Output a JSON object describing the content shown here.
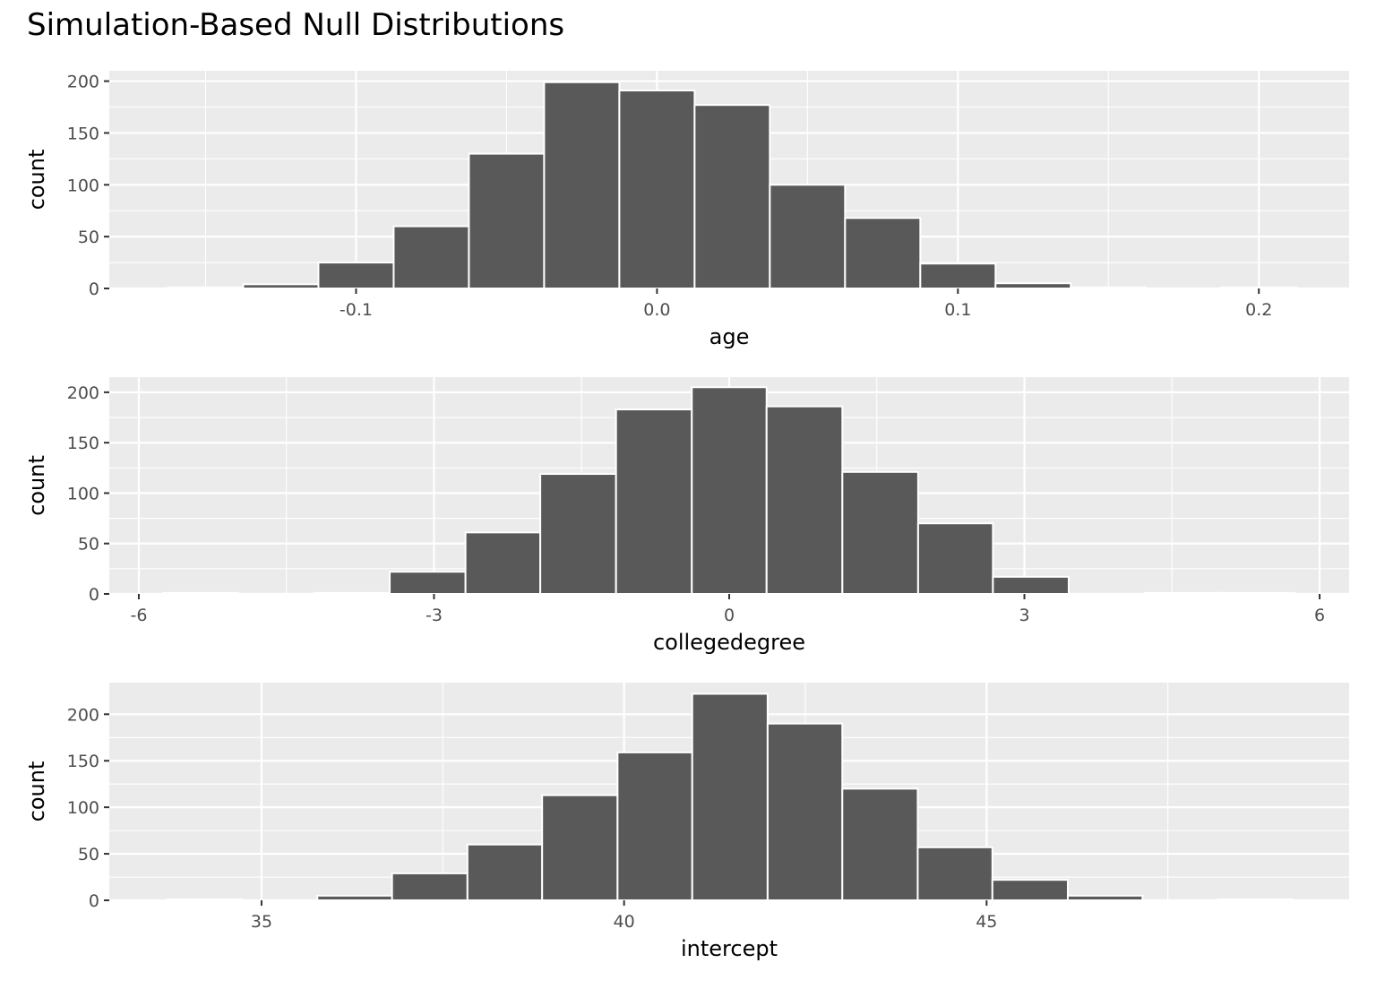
{
  "title": "Simulation-Based Null Distributions",
  "chart_data": [
    {
      "type": "bar",
      "panel": "age",
      "title": "",
      "xlabel": "age",
      "ylabel": "count",
      "xlim": [
        -0.182,
        0.23
      ],
      "ylim": [
        0,
        210
      ],
      "x_ticks": [
        -0.1,
        0.0,
        0.1,
        0.2
      ],
      "x_tick_labels": [
        "-0.1",
        "0.0",
        "0.1",
        "0.2"
      ],
      "y_ticks": [
        0,
        50,
        100,
        150,
        200
      ],
      "y_tick_labels": [
        "0",
        "50",
        "100",
        "150",
        "200"
      ],
      "grid": true,
      "bar_fill": "#595959",
      "bar_outline": "#ffffff",
      "panel_background": "#ebebeb",
      "bins": [
        {
          "x0": -0.1625,
          "x1": -0.1375,
          "count": 1
        },
        {
          "x0": -0.1375,
          "x1": -0.1125,
          "count": 4
        },
        {
          "x0": -0.1125,
          "x1": -0.0875,
          "count": 25
        },
        {
          "x0": -0.0875,
          "x1": -0.0625,
          "count": 60
        },
        {
          "x0": -0.0625,
          "x1": -0.0375,
          "count": 130
        },
        {
          "x0": -0.0375,
          "x1": -0.0125,
          "count": 199
        },
        {
          "x0": -0.0125,
          "x1": 0.0125,
          "count": 191
        },
        {
          "x0": 0.0125,
          "x1": 0.0375,
          "count": 177
        },
        {
          "x0": 0.0375,
          "x1": 0.0625,
          "count": 100
        },
        {
          "x0": 0.0625,
          "x1": 0.0875,
          "count": 68
        },
        {
          "x0": 0.0875,
          "x1": 0.1125,
          "count": 24
        },
        {
          "x0": 0.1125,
          "x1": 0.1375,
          "count": 5
        },
        {
          "x0": 0.1375,
          "x1": 0.1625,
          "count": 1
        },
        {
          "x0": 0.1625,
          "x1": 0.1875,
          "count": 0
        },
        {
          "x0": 0.1875,
          "x1": 0.2125,
          "count": 1
        }
      ]
    },
    {
      "type": "bar",
      "panel": "collegedegree",
      "title": "",
      "xlabel": "collegedegree",
      "ylabel": "count",
      "xlim": [
        -6.3,
        6.3
      ],
      "ylim": [
        0,
        215
      ],
      "x_ticks": [
        -6,
        -3,
        0,
        3,
        6
      ],
      "x_tick_labels": [
        "-6",
        "-3",
        "0",
        "3",
        "6"
      ],
      "y_ticks": [
        0,
        50,
        100,
        150,
        200
      ],
      "y_tick_labels": [
        "0",
        "50",
        "100",
        "150",
        "200"
      ],
      "grid": true,
      "bar_fill": "#595959",
      "bar_outline": "#ffffff",
      "panel_background": "#ebebeb",
      "bins": [
        {
          "x0": -5.75,
          "x1": -4.99,
          "count": 1
        },
        {
          "x0": -4.99,
          "x1": -4.22,
          "count": 0
        },
        {
          "x0": -4.22,
          "x1": -3.45,
          "count": 1
        },
        {
          "x0": -3.45,
          "x1": -2.68,
          "count": 22
        },
        {
          "x0": -2.68,
          "x1": -1.92,
          "count": 61
        },
        {
          "x0": -1.92,
          "x1": -1.15,
          "count": 119
        },
        {
          "x0": -1.15,
          "x1": -0.38,
          "count": 183
        },
        {
          "x0": -0.38,
          "x1": 0.38,
          "count": 205
        },
        {
          "x0": 0.38,
          "x1": 1.15,
          "count": 186
        },
        {
          "x0": 1.15,
          "x1": 1.92,
          "count": 121
        },
        {
          "x0": 1.92,
          "x1": 2.68,
          "count": 70
        },
        {
          "x0": 2.68,
          "x1": 3.45,
          "count": 17
        },
        {
          "x0": 3.45,
          "x1": 4.22,
          "count": 0
        },
        {
          "x0": 4.22,
          "x1": 4.99,
          "count": 1
        },
        {
          "x0": 4.99,
          "x1": 5.75,
          "count": 1
        }
      ]
    },
    {
      "type": "bar",
      "panel": "intercept",
      "title": "",
      "xlabel": "intercept",
      "ylabel": "count",
      "xlim": [
        32.9,
        50.0
      ],
      "ylim": [
        0,
        234
      ],
      "x_ticks": [
        35,
        40,
        45
      ],
      "x_tick_labels": [
        "35",
        "40",
        "45"
      ],
      "y_ticks": [
        0,
        50,
        100,
        150,
        200
      ],
      "y_tick_labels": [
        "0",
        "50",
        "100",
        "150",
        "200"
      ],
      "grid": true,
      "bar_fill": "#595959",
      "bar_outline": "#ffffff",
      "panel_background": "#ebebeb",
      "bins": [
        {
          "x0": 33.7,
          "x1": 34.73,
          "count": 1
        },
        {
          "x0": 34.73,
          "x1": 35.77,
          "count": 0
        },
        {
          "x0": 35.77,
          "x1": 36.8,
          "count": 5
        },
        {
          "x0": 36.8,
          "x1": 37.84,
          "count": 29
        },
        {
          "x0": 37.84,
          "x1": 38.87,
          "count": 60
        },
        {
          "x0": 38.87,
          "x1": 39.91,
          "count": 113
        },
        {
          "x0": 39.91,
          "x1": 40.94,
          "count": 159
        },
        {
          "x0": 40.94,
          "x1": 41.98,
          "count": 222
        },
        {
          "x0": 41.98,
          "x1": 43.01,
          "count": 190
        },
        {
          "x0": 43.01,
          "x1": 44.05,
          "count": 120
        },
        {
          "x0": 44.05,
          "x1": 45.08,
          "count": 57
        },
        {
          "x0": 45.08,
          "x1": 46.12,
          "count": 22
        },
        {
          "x0": 46.12,
          "x1": 47.15,
          "count": 5
        },
        {
          "x0": 47.15,
          "x1": 48.19,
          "count": 0
        },
        {
          "x0": 48.19,
          "x1": 49.22,
          "count": 1
        }
      ]
    }
  ]
}
